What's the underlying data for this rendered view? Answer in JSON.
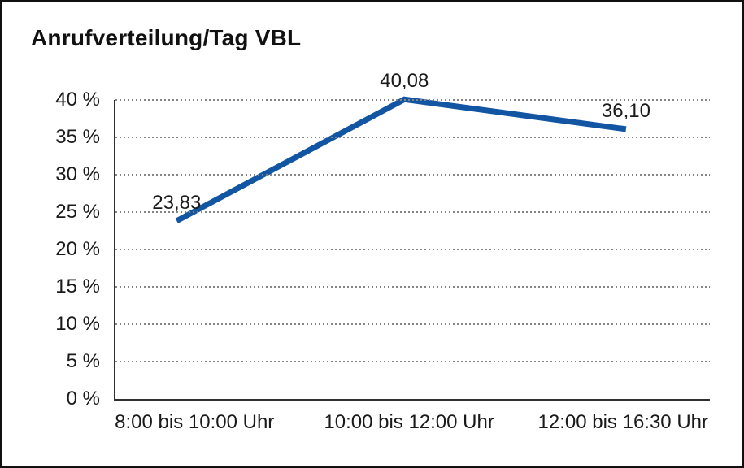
{
  "chart": {
    "title": "Anrufverteilung/Tag VBL"
  },
  "chart_data": {
    "type": "line",
    "title": "Anrufverteilung/Tag VBL",
    "categories": [
      "8:00 bis 10:00 Uhr",
      "10:00 bis 12:00 Uhr",
      "12:00 bis 16:30 Uhr"
    ],
    "series": [
      {
        "values": [
          23.83,
          40.08,
          36.1
        ],
        "point_labels": [
          "23,83",
          "40,08",
          "36,10"
        ],
        "color": "#1256a3"
      }
    ],
    "xlabel": "",
    "ylabel": "",
    "ylim": [
      0,
      40
    ],
    "ytick_step": 5,
    "ytick_labels": [
      "0 %",
      "5 %",
      "10 %",
      "15 %",
      "20 %",
      "25 %",
      "30 %",
      "35 %",
      "40 %"
    ],
    "grid": "horizontal-dotted",
    "legend_position": "none",
    "marker": "none"
  }
}
